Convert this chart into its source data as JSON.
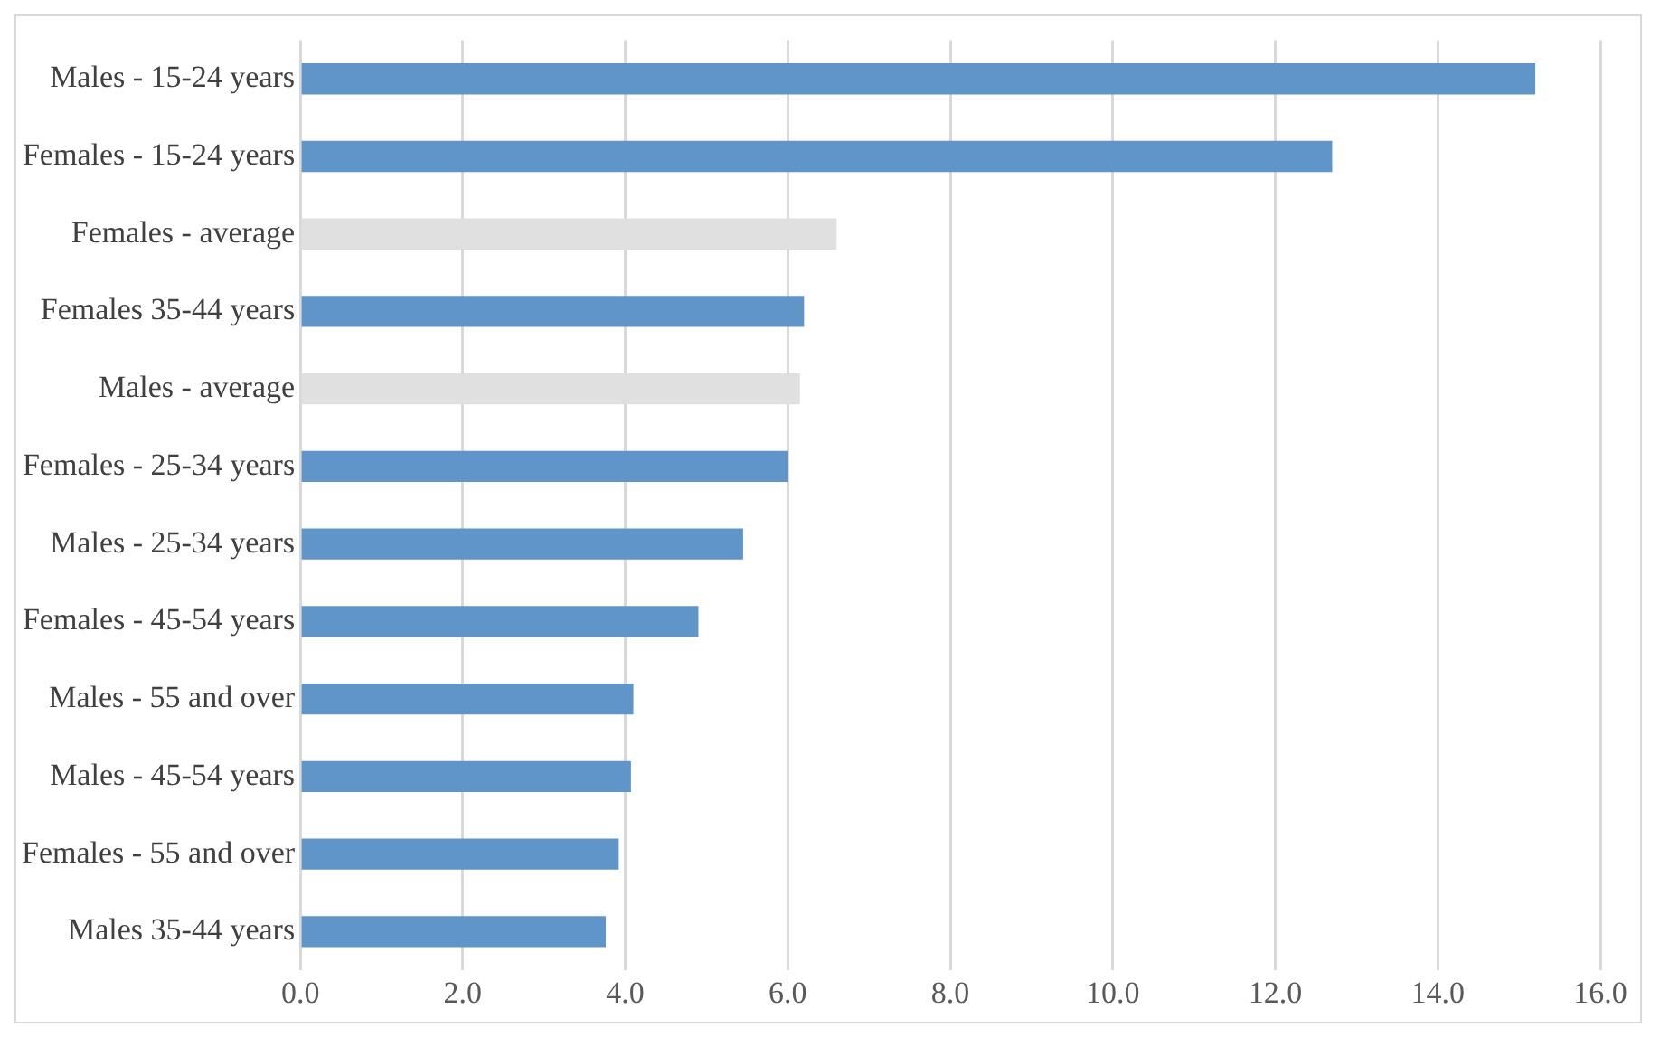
{
  "chart_data": {
    "type": "bar",
    "orientation": "horizontal",
    "categories": [
      "Males - 15-24 years",
      "Females - 15-24 years",
      "Females - average",
      "Females 35-44 years",
      "Males - average",
      "Females - 25-34 years",
      "Males - 25-34 years",
      "Females - 45-54 years",
      "Males - 55 and over",
      "Males - 45-54 years",
      "Females - 55 and over",
      "Males 35-44 years"
    ],
    "values": [
      15.2,
      12.7,
      6.6,
      6.2,
      6.15,
      6.0,
      5.45,
      4.9,
      4.1,
      4.07,
      3.92,
      3.76
    ],
    "colors": [
      "#5f95c9",
      "#5f95c9",
      "#e0e0e0",
      "#5f95c9",
      "#e0e0e0",
      "#5f95c9",
      "#5f95c9",
      "#5f95c9",
      "#5f95c9",
      "#5f95c9",
      "#5f95c9",
      "#5f95c9"
    ],
    "xlim": [
      0,
      16
    ],
    "xticks": [
      {
        "value": 0,
        "label": "0.0"
      },
      {
        "value": 2,
        "label": "2.0"
      },
      {
        "value": 4,
        "label": "4.0"
      },
      {
        "value": 6,
        "label": "6.0"
      },
      {
        "value": 8,
        "label": "8.0"
      },
      {
        "value": 10,
        "label": "10.0"
      },
      {
        "value": 12,
        "label": "12.0"
      },
      {
        "value": 14,
        "label": "14.0"
      },
      {
        "value": 16,
        "label": "16.0"
      }
    ],
    "grid": "x"
  }
}
